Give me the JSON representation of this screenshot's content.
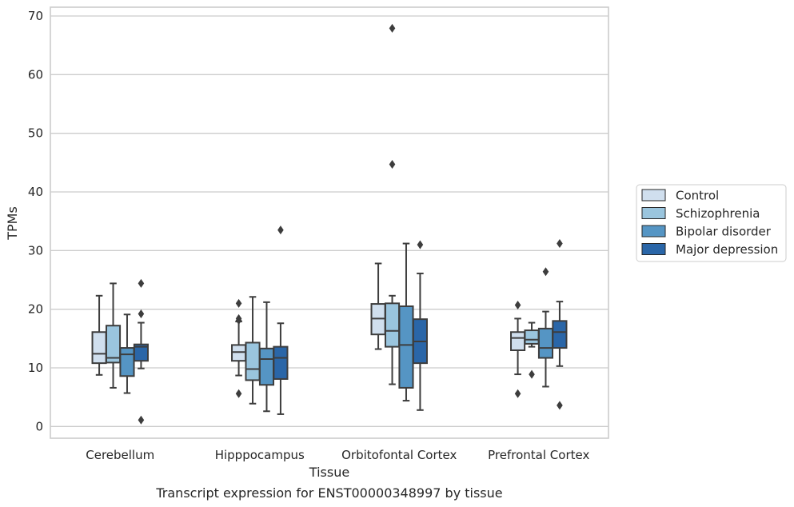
{
  "chart_data": {
    "type": "box",
    "title": "",
    "caption": "Transcript expression for ENST00000348997 by tissue",
    "xlabel": "Tissue",
    "ylabel": "TPMs",
    "ylim": [
      -2,
      71.5
    ],
    "yticks": [
      0,
      10,
      20,
      30,
      40,
      50,
      60,
      70
    ],
    "grid": true,
    "legend_position": "right",
    "categories": [
      "Cerebellum",
      "Hipppocampus",
      "Orbitofontal Cortex",
      "Prefrontal Cortex"
    ],
    "series": [
      {
        "name": "Control",
        "color": "#d0dfee",
        "boxes": [
          {
            "whislo": 8.8,
            "q1": 10.8,
            "med": 12.4,
            "q3": 16.1,
            "whishi": 22.3,
            "fliers": []
          },
          {
            "whislo": 8.7,
            "q1": 11.2,
            "med": 12.7,
            "q3": 13.9,
            "whishi": 17.9,
            "fliers": [
              21.0,
              18.4,
              18.1,
              5.6
            ]
          },
          {
            "whislo": 13.2,
            "q1": 15.7,
            "med": 18.4,
            "q3": 20.9,
            "whishi": 27.8,
            "fliers": []
          },
          {
            "whislo": 8.9,
            "q1": 13.0,
            "med": 15.1,
            "q3": 16.1,
            "whishi": 18.4,
            "fliers": [
              20.7,
              5.6
            ]
          }
        ]
      },
      {
        "name": "Schizophrenia",
        "color": "#9ac5de",
        "boxes": [
          {
            "whislo": 6.6,
            "q1": 10.9,
            "med": 11.7,
            "q3": 17.2,
            "whishi": 24.4,
            "fliers": []
          },
          {
            "whislo": 3.9,
            "q1": 7.9,
            "med": 9.8,
            "q3": 14.3,
            "whishi": 22.1,
            "fliers": []
          },
          {
            "whislo": 7.2,
            "q1": 13.6,
            "med": 16.3,
            "q3": 21.0,
            "whishi": 22.3,
            "fliers": [
              67.9,
              44.7
            ]
          },
          {
            "whislo": 13.6,
            "q1": 14.1,
            "med": 14.8,
            "q3": 16.4,
            "whishi": 17.7,
            "fliers": [
              8.9
            ]
          }
        ]
      },
      {
        "name": "Bipolar disorder",
        "color": "#5595c4",
        "boxes": [
          {
            "whislo": 5.7,
            "q1": 8.6,
            "med": 12.3,
            "q3": 13.4,
            "whishi": 19.1,
            "fliers": []
          },
          {
            "whislo": 2.6,
            "q1": 7.1,
            "med": 11.5,
            "q3": 13.3,
            "whishi": 21.2,
            "fliers": []
          },
          {
            "whislo": 4.4,
            "q1": 6.6,
            "med": 13.9,
            "q3": 20.5,
            "whishi": 31.2,
            "fliers": []
          },
          {
            "whislo": 6.8,
            "q1": 11.7,
            "med": 13.4,
            "q3": 16.7,
            "whishi": 19.6,
            "fliers": [
              26.4
            ]
          }
        ]
      },
      {
        "name": "Major depression",
        "color": "#2a66a8",
        "boxes": [
          {
            "whislo": 9.9,
            "q1": 11.2,
            "med": 13.6,
            "q3": 14.0,
            "whishi": 17.7,
            "fliers": [
              24.4,
              19.2,
              1.1
            ]
          },
          {
            "whislo": 2.1,
            "q1": 8.1,
            "med": 11.7,
            "q3": 13.6,
            "whishi": 17.6,
            "fliers": [
              33.5
            ]
          },
          {
            "whislo": 2.8,
            "q1": 10.8,
            "med": 14.5,
            "q3": 18.3,
            "whishi": 26.1,
            "fliers": [
              31.0
            ]
          },
          {
            "whislo": 10.3,
            "q1": 13.4,
            "med": 16.1,
            "q3": 18.0,
            "whishi": 21.3,
            "fliers": [
              31.2,
              3.6
            ]
          }
        ]
      }
    ]
  }
}
